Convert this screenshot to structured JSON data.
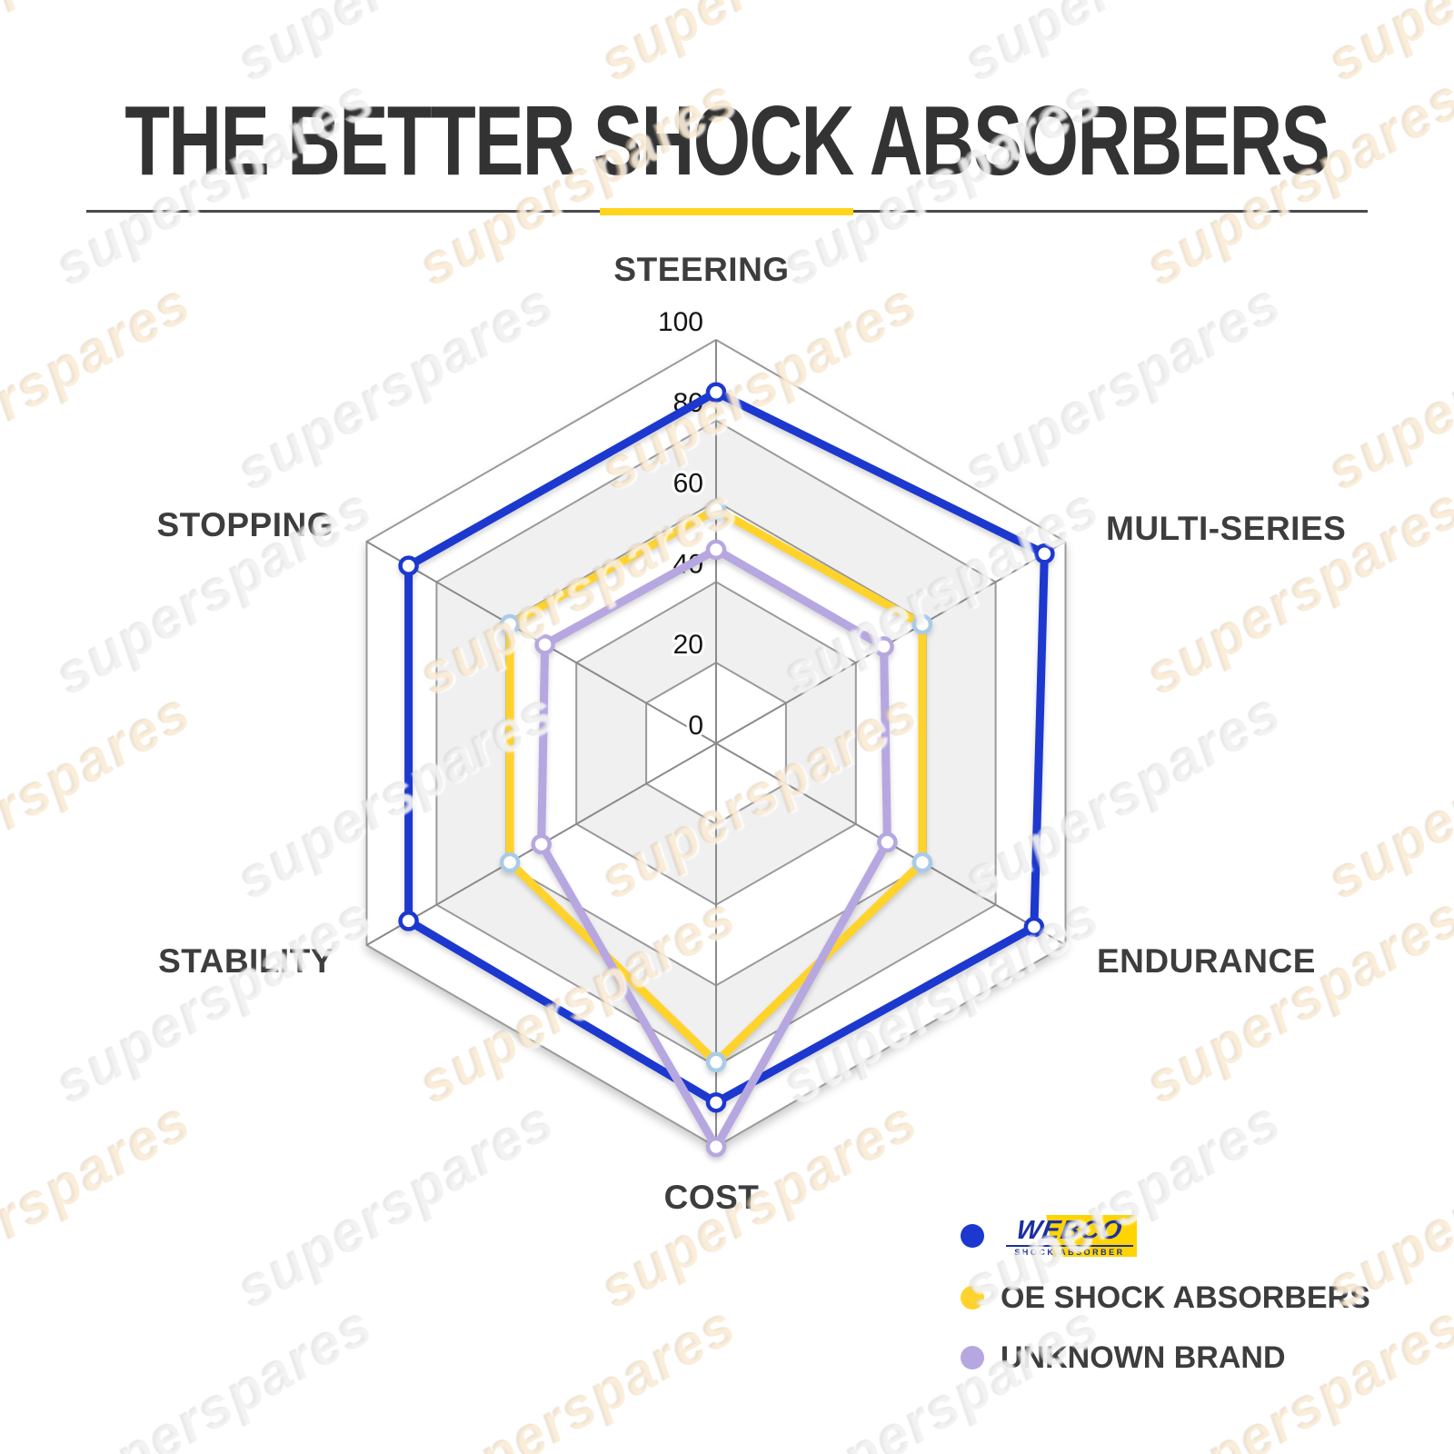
{
  "title": "THE BETTER SHOCK ABSORBERS",
  "watermark": "superspares",
  "chart_data": {
    "type": "radar",
    "categories": [
      "STEERING",
      "MULTI-SERIES",
      "ENDURANCE",
      "COST",
      "STABILITY",
      "STOPPING"
    ],
    "ticks": [
      0,
      20,
      40,
      60,
      80,
      100
    ],
    "rmax": 100,
    "grid": {
      "band_fill": "#F0F0F0",
      "band_alt_fill": "#FFFFFF",
      "ring_line_color": "#9A9A9A",
      "spoke_color": "#8A8A8A"
    },
    "series": [
      {
        "name": "WEBCO SHOCK ABSORBER",
        "color": "#1C38CE",
        "marker_fill": "#FFFFFF",
        "marker_stroke": "#1C38CE",
        "values": [
          87,
          94,
          91,
          89,
          88,
          88
        ]
      },
      {
        "name": "OE SHOCK ABSORBERS",
        "color": "#FFD32B",
        "marker_fill": "#FFFFFF",
        "marker_stroke": "#A9CBE8",
        "values": [
          58,
          59,
          59,
          79,
          59,
          59
        ]
      },
      {
        "name": "UNKNOWN BRAND",
        "color": "#B7A7E0",
        "marker_fill": "#FFFFFF",
        "marker_stroke": "#B7A7E0",
        "values": [
          48,
          48,
          49,
          100,
          50,
          49
        ]
      }
    ],
    "legend_position": "bottom-right"
  },
  "legend": {
    "items": [
      {
        "name": "WEBCO",
        "dot_color": "#1C38CE",
        "logo": {
          "word": "WEBCO",
          "subtext": "SHOCK ABSORBER",
          "bg": "#FFD400",
          "text_color": "#1B2F9E"
        }
      },
      {
        "name": "OE SHOCK ABSORBERS",
        "dot_color": "#FFD32B"
      },
      {
        "name": "UNKNOWN BRAND",
        "dot_color": "#B7A7E0"
      }
    ]
  },
  "accent_color": "#FFD41C",
  "title_color": "#333333"
}
